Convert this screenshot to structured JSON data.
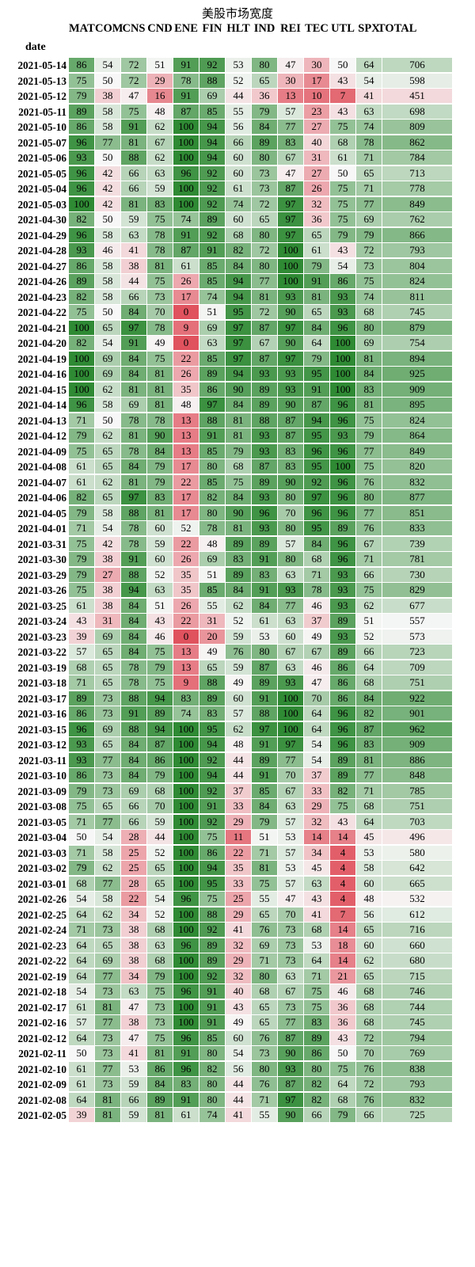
{
  "chart_data": {
    "type": "heatmap",
    "title": "美股市场宽度",
    "row_axis_label": "date",
    "columns": [
      "MAT",
      "COM",
      "CNS",
      "CND",
      "ENE",
      "FIN",
      "HLT",
      "IND",
      "REI",
      "TEC",
      "UTL",
      "SPX",
      "TOTAL"
    ],
    "color_scale": {
      "low": "#e0525e",
      "mid": "#f7f7f7",
      "high": "#2f8a34",
      "range": [
        0,
        100
      ],
      "total_range": [
        0,
        1100
      ]
    },
    "rows": [
      {
        "date": "2021-05-14",
        "values": [
          86,
          54,
          72,
          51,
          91,
          92,
          53,
          80,
          47,
          30,
          50,
          64,
          706
        ]
      },
      {
        "date": "2021-05-13",
        "values": [
          75,
          50,
          72,
          29,
          78,
          88,
          52,
          65,
          30,
          17,
          43,
          54,
          598
        ]
      },
      {
        "date": "2021-05-12",
        "values": [
          79,
          38,
          47,
          16,
          91,
          69,
          44,
          36,
          13,
          10,
          7,
          41,
          451
        ]
      },
      {
        "date": "2021-05-11",
        "values": [
          89,
          58,
          75,
          48,
          87,
          85,
          55,
          79,
          57,
          23,
          43,
          63,
          698
        ]
      },
      {
        "date": "2021-05-10",
        "values": [
          86,
          58,
          91,
          62,
          100,
          94,
          56,
          84,
          77,
          27,
          75,
          74,
          809
        ]
      },
      {
        "date": "2021-05-07",
        "values": [
          96,
          77,
          81,
          67,
          100,
          94,
          66,
          89,
          83,
          40,
          68,
          78,
          862
        ]
      },
      {
        "date": "2021-05-06",
        "values": [
          93,
          50,
          88,
          62,
          100,
          94,
          60,
          80,
          67,
          31,
          61,
          71,
          784
        ]
      },
      {
        "date": "2021-05-05",
        "values": [
          96,
          42,
          66,
          63,
          96,
          92,
          60,
          73,
          47,
          27,
          50,
          65,
          713
        ]
      },
      {
        "date": "2021-05-04",
        "values": [
          96,
          42,
          66,
          59,
          100,
          92,
          61,
          73,
          87,
          26,
          75,
          71,
          778
        ]
      },
      {
        "date": "2021-05-03",
        "values": [
          100,
          42,
          81,
          83,
          100,
          92,
          74,
          72,
          97,
          32,
          75,
          77,
          849
        ]
      },
      {
        "date": "2021-04-30",
        "values": [
          82,
          50,
          59,
          75,
          74,
          89,
          60,
          65,
          97,
          36,
          75,
          69,
          762
        ]
      },
      {
        "date": "2021-04-29",
        "values": [
          96,
          58,
          63,
          78,
          91,
          92,
          68,
          80,
          97,
          65,
          79,
          79,
          866
        ]
      },
      {
        "date": "2021-04-28",
        "values": [
          93,
          46,
          41,
          78,
          87,
          91,
          82,
          72,
          100,
          61,
          43,
          72,
          793
        ]
      },
      {
        "date": "2021-04-27",
        "values": [
          86,
          58,
          38,
          81,
          61,
          85,
          84,
          80,
          100,
          79,
          54,
          73,
          804
        ]
      },
      {
        "date": "2021-04-26",
        "values": [
          89,
          58,
          44,
          75,
          26,
          85,
          94,
          77,
          100,
          91,
          86,
          75,
          824
        ]
      },
      {
        "date": "2021-04-23",
        "values": [
          82,
          58,
          66,
          73,
          17,
          74,
          94,
          81,
          93,
          81,
          93,
          74,
          811
        ]
      },
      {
        "date": "2021-04-22",
        "values": [
          75,
          50,
          84,
          70,
          0,
          51,
          95,
          72,
          90,
          65,
          93,
          68,
          745
        ]
      },
      {
        "date": "2021-04-21",
        "values": [
          100,
          65,
          97,
          78,
          9,
          69,
          97,
          87,
          97,
          84,
          96,
          80,
          879
        ]
      },
      {
        "date": "2021-04-20",
        "values": [
          82,
          54,
          91,
          49,
          0,
          63,
          97,
          67,
          90,
          64,
          100,
          69,
          754
        ]
      },
      {
        "date": "2021-04-19",
        "values": [
          100,
          69,
          84,
          75,
          22,
          85,
          97,
          87,
          97,
          79,
          100,
          81,
          894
        ]
      },
      {
        "date": "2021-04-16",
        "values": [
          100,
          69,
          84,
          81,
          26,
          89,
          94,
          93,
          93,
          95,
          100,
          84,
          925
        ]
      },
      {
        "date": "2021-04-15",
        "values": [
          100,
          62,
          81,
          81,
          35,
          86,
          90,
          89,
          93,
          91,
          100,
          83,
          909
        ]
      },
      {
        "date": "2021-04-14",
        "values": [
          96,
          58,
          69,
          81,
          48,
          97,
          84,
          89,
          90,
          87,
          96,
          81,
          895
        ]
      },
      {
        "date": "2021-04-13",
        "values": [
          71,
          50,
          78,
          78,
          13,
          88,
          81,
          88,
          87,
          94,
          96,
          75,
          824
        ]
      },
      {
        "date": "2021-04-12",
        "values": [
          79,
          62,
          81,
          90,
          13,
          91,
          81,
          93,
          87,
          95,
          93,
          79,
          864
        ]
      },
      {
        "date": "2021-04-09",
        "values": [
          75,
          65,
          78,
          84,
          13,
          85,
          79,
          93,
          83,
          96,
          96,
          77,
          849
        ]
      },
      {
        "date": "2021-04-08",
        "values": [
          61,
          65,
          84,
          79,
          17,
          80,
          68,
          87,
          83,
          95,
          100,
          75,
          820
        ]
      },
      {
        "date": "2021-04-07",
        "values": [
          61,
          62,
          81,
          79,
          22,
          85,
          75,
          89,
          90,
          92,
          96,
          76,
          832
        ]
      },
      {
        "date": "2021-04-06",
        "values": [
          82,
          65,
          97,
          83,
          17,
          82,
          84,
          93,
          80,
          97,
          96,
          80,
          877
        ]
      },
      {
        "date": "2021-04-05",
        "values": [
          79,
          58,
          88,
          81,
          17,
          80,
          90,
          96,
          70,
          96,
          96,
          77,
          851
        ]
      },
      {
        "date": "2021-04-01",
        "values": [
          71,
          54,
          78,
          60,
          52,
          78,
          81,
          93,
          80,
          95,
          89,
          76,
          833
        ]
      },
      {
        "date": "2021-03-31",
        "values": [
          75,
          42,
          78,
          59,
          22,
          48,
          89,
          89,
          57,
          84,
          96,
          67,
          739
        ]
      },
      {
        "date": "2021-03-30",
        "values": [
          79,
          38,
          91,
          60,
          26,
          69,
          83,
          91,
          80,
          68,
          96,
          71,
          781
        ]
      },
      {
        "date": "2021-03-29",
        "values": [
          79,
          27,
          88,
          52,
          35,
          51,
          89,
          83,
          63,
          71,
          93,
          66,
          730
        ]
      },
      {
        "date": "2021-03-26",
        "values": [
          75,
          38,
          94,
          63,
          35,
          85,
          84,
          91,
          93,
          78,
          93,
          75,
          829
        ]
      },
      {
        "date": "2021-03-25",
        "values": [
          61,
          38,
          84,
          51,
          26,
          55,
          62,
          84,
          77,
          46,
          93,
          62,
          677
        ]
      },
      {
        "date": "2021-03-24",
        "values": [
          43,
          31,
          84,
          43,
          22,
          31,
          52,
          61,
          63,
          37,
          89,
          51,
          557
        ]
      },
      {
        "date": "2021-03-23",
        "values": [
          39,
          69,
          84,
          46,
          0,
          20,
          59,
          53,
          60,
          49,
          93,
          52,
          573
        ]
      },
      {
        "date": "2021-03-22",
        "values": [
          57,
          65,
          84,
          75,
          13,
          49,
          76,
          80,
          67,
          67,
          89,
          66,
          723
        ]
      },
      {
        "date": "2021-03-19",
        "values": [
          68,
          65,
          78,
          79,
          13,
          65,
          59,
          87,
          63,
          46,
          86,
          64,
          709
        ]
      },
      {
        "date": "2021-03-18",
        "values": [
          71,
          65,
          78,
          75,
          9,
          88,
          49,
          89,
          93,
          47,
          86,
          68,
          751
        ]
      },
      {
        "date": "2021-03-17",
        "values": [
          89,
          73,
          88,
          94,
          83,
          89,
          60,
          91,
          100,
          70,
          86,
          84,
          922
        ]
      },
      {
        "date": "2021-03-16",
        "values": [
          86,
          73,
          91,
          89,
          74,
          83,
          57,
          88,
          100,
          64,
          96,
          82,
          901
        ]
      },
      {
        "date": "2021-03-15",
        "values": [
          96,
          69,
          88,
          94,
          100,
          95,
          62,
          97,
          100,
          64,
          96,
          87,
          962
        ]
      },
      {
        "date": "2021-03-12",
        "values": [
          93,
          65,
          84,
          87,
          100,
          94,
          48,
          91,
          97,
          54,
          96,
          83,
          909
        ]
      },
      {
        "date": "2021-03-11",
        "values": [
          93,
          77,
          84,
          86,
          100,
          92,
          44,
          89,
          77,
          54,
          89,
          81,
          886
        ]
      },
      {
        "date": "2021-03-10",
        "values": [
          86,
          73,
          84,
          79,
          100,
          94,
          44,
          91,
          70,
          37,
          89,
          77,
          848
        ]
      },
      {
        "date": "2021-03-09",
        "values": [
          79,
          73,
          69,
          68,
          100,
          92,
          37,
          85,
          67,
          33,
          82,
          71,
          785
        ]
      },
      {
        "date": "2021-03-08",
        "values": [
          75,
          65,
          66,
          70,
          100,
          91,
          33,
          84,
          63,
          29,
          75,
          68,
          751
        ]
      },
      {
        "date": "2021-03-05",
        "values": [
          71,
          77,
          66,
          59,
          100,
          92,
          29,
          79,
          57,
          32,
          43,
          64,
          703
        ]
      },
      {
        "date": "2021-03-04",
        "values": [
          50,
          54,
          28,
          44,
          100,
          75,
          11,
          51,
          53,
          14,
          14,
          45,
          496
        ]
      },
      {
        "date": "2021-03-03",
        "values": [
          71,
          58,
          25,
          52,
          100,
          86,
          22,
          71,
          57,
          34,
          4,
          53,
          580
        ]
      },
      {
        "date": "2021-03-02",
        "values": [
          79,
          62,
          25,
          65,
          100,
          94,
          35,
          81,
          53,
          45,
          4,
          58,
          642
        ]
      },
      {
        "date": "2021-03-01",
        "values": [
          68,
          77,
          28,
          65,
          100,
          95,
          33,
          75,
          57,
          63,
          4,
          60,
          665
        ]
      },
      {
        "date": "2021-02-26",
        "values": [
          54,
          58,
          22,
          54,
          96,
          75,
          25,
          55,
          47,
          43,
          4,
          48,
          532
        ]
      },
      {
        "date": "2021-02-25",
        "values": [
          64,
          62,
          34,
          52,
          100,
          88,
          29,
          65,
          70,
          41,
          7,
          56,
          612
        ]
      },
      {
        "date": "2021-02-24",
        "values": [
          71,
          73,
          38,
          68,
          100,
          92,
          41,
          76,
          73,
          68,
          14,
          65,
          716
        ]
      },
      {
        "date": "2021-02-23",
        "values": [
          64,
          65,
          38,
          63,
          96,
          89,
          32,
          69,
          73,
          53,
          18,
          60,
          660
        ]
      },
      {
        "date": "2021-02-22",
        "values": [
          64,
          69,
          38,
          68,
          100,
          89,
          29,
          71,
          73,
          64,
          14,
          62,
          680
        ]
      },
      {
        "date": "2021-02-19",
        "values": [
          64,
          77,
          34,
          79,
          100,
          92,
          32,
          80,
          63,
          71,
          21,
          65,
          715
        ]
      },
      {
        "date": "2021-02-18",
        "values": [
          54,
          73,
          63,
          75,
          96,
          91,
          40,
          68,
          67,
          75,
          46,
          68,
          746
        ]
      },
      {
        "date": "2021-02-17",
        "values": [
          61,
          81,
          47,
          73,
          100,
          91,
          43,
          65,
          73,
          75,
          36,
          68,
          744
        ]
      },
      {
        "date": "2021-02-16",
        "values": [
          57,
          77,
          38,
          73,
          100,
          91,
          49,
          65,
          77,
          83,
          36,
          68,
          745
        ]
      },
      {
        "date": "2021-02-12",
        "values": [
          64,
          73,
          47,
          75,
          96,
          85,
          60,
          76,
          87,
          89,
          43,
          72,
          794
        ]
      },
      {
        "date": "2021-02-11",
        "values": [
          50,
          73,
          41,
          81,
          91,
          80,
          54,
          73,
          90,
          86,
          50,
          70,
          769
        ]
      },
      {
        "date": "2021-02-10",
        "values": [
          61,
          77,
          53,
          86,
          96,
          82,
          56,
          80,
          93,
          80,
          75,
          76,
          838
        ]
      },
      {
        "date": "2021-02-09",
        "values": [
          61,
          73,
          59,
          84,
          83,
          80,
          44,
          76,
          87,
          82,
          64,
          72,
          793
        ]
      },
      {
        "date": "2021-02-08",
        "values": [
          64,
          81,
          66,
          89,
          91,
          80,
          44,
          71,
          97,
          82,
          68,
          76,
          832
        ]
      },
      {
        "date": "2021-02-05",
        "values": [
          39,
          81,
          59,
          81,
          61,
          74,
          41,
          55,
          90,
          66,
          79,
          66,
          725
        ]
      }
    ]
  }
}
